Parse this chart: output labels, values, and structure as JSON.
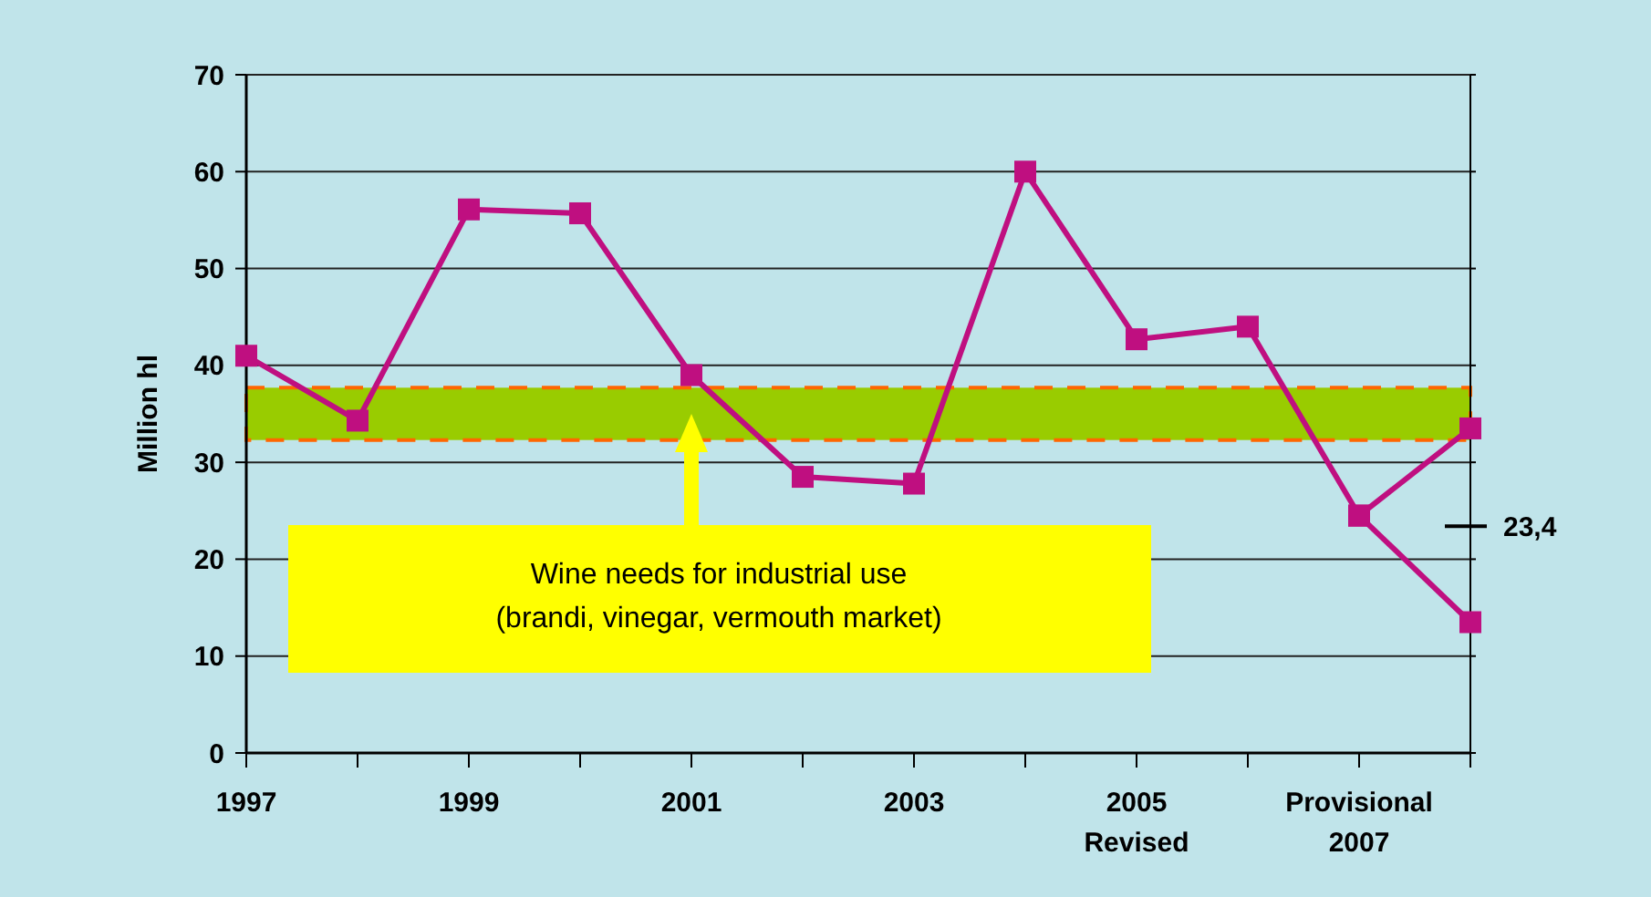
{
  "chart_data": {
    "type": "line",
    "ylabel": "Million hl",
    "categories": [
      "1997",
      null,
      "1999",
      null,
      "2001",
      null,
      "2003",
      null,
      "2005\nRevised",
      null,
      "Provisional\n2007",
      null
    ],
    "series": [
      {
        "color": "#bf0f80",
        "values": [
          41,
          34.3,
          56.1,
          55.7,
          39,
          28.5,
          27.8,
          60,
          42.7,
          44,
          24.5,
          33.5
        ]
      },
      {
        "color": "#bf0f80",
        "values": [
          null,
          null,
          null,
          null,
          null,
          null,
          null,
          null,
          null,
          null,
          24.5,
          13.5
        ]
      }
    ],
    "ylim": [
      0,
      70
    ],
    "yticks": [
      0,
      10,
      20,
      30,
      40,
      50,
      60,
      70
    ],
    "grid": "y",
    "marker": "square",
    "line_style": "solid",
    "bands": [
      {
        "axis": "y",
        "from": 32.3,
        "to": 37.7,
        "color": "#99cc00"
      }
    ],
    "ref_lines": [
      {
        "axis": "y",
        "value": 23.4,
        "label": "23,4"
      }
    ],
    "annotations": [
      "Wine needs for industrial use\n(brandi, vinegar, vermouth market)"
    ]
  }
}
